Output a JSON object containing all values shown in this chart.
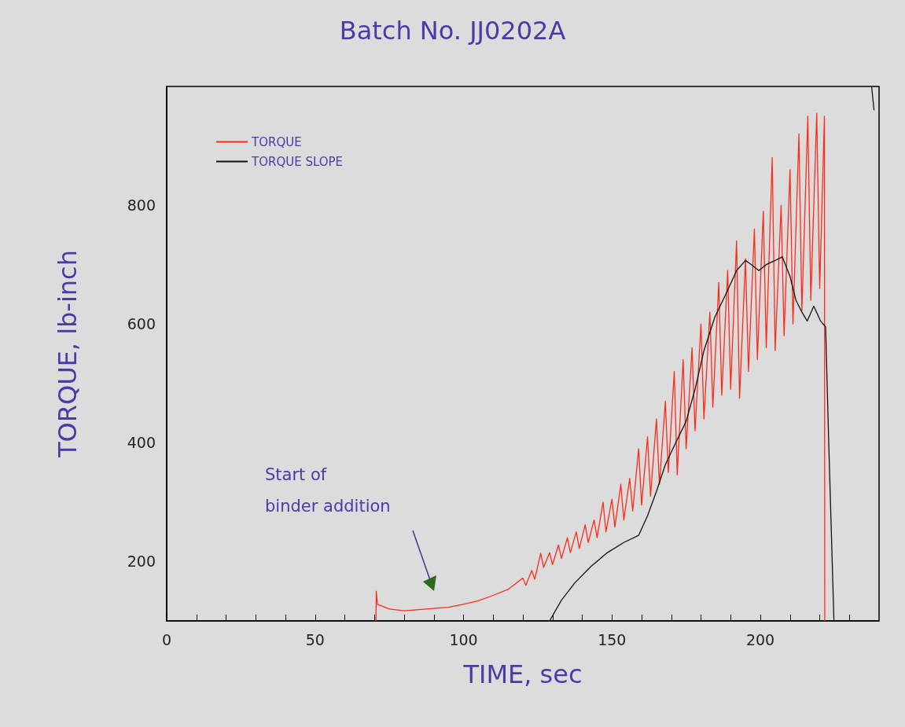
{
  "chart_data": {
    "type": "line",
    "title": "Batch No. JJ0202A",
    "xlabel": "TIME, sec",
    "ylabel": "TORQUE, lb-inch",
    "xlim": [
      0,
      240
    ],
    "ylim": [
      100,
      1000
    ],
    "xticks": [
      0,
      {
        "value": 10,
        "label": null
      },
      {
        "value": 20,
        "label": null
      },
      {
        "value": 30,
        "label": null
      },
      {
        "value": 40,
        "label": null
      },
      50,
      {
        "value": 60,
        "label": null
      },
      {
        "value": 70,
        "label": null
      },
      {
        "value": 80,
        "label": null
      },
      {
        "value": 90,
        "label": null
      },
      100,
      {
        "value": 110,
        "label": null
      },
      {
        "value": 120,
        "label": null
      },
      {
        "value": 130,
        "label": null
      },
      {
        "value": 140,
        "label": null
      },
      150,
      {
        "value": 160,
        "label": null
      },
      {
        "value": 170,
        "label": null
      },
      {
        "value": 180,
        "label": null
      },
      {
        "value": 190,
        "label": null
      },
      200,
      {
        "value": 210,
        "label": null
      },
      {
        "value": 220,
        "label": null
      },
      {
        "value": 230,
        "label": null
      }
    ],
    "yticks": [
      200,
      400,
      600,
      800
    ],
    "grid": false,
    "legend": "top left",
    "marker": "none",
    "line_style": "solid",
    "annotations": [
      "Start of\nbinder addition"
    ],
    "series": [
      {
        "name": "TORQUE",
        "color": "#ff2a1a",
        "x": [
          70.5,
          70.6,
          71,
          75,
          80,
          85,
          90,
          95,
          100,
          105,
          110,
          115,
          120,
          121,
          123,
          124,
          126,
          127,
          129,
          130,
          132,
          133,
          135,
          136,
          138,
          139,
          141,
          142,
          144,
          145,
          147,
          148,
          150,
          151,
          153,
          154,
          156,
          157,
          159,
          160,
          162,
          163,
          165,
          166,
          168,
          169,
          171,
          172,
          174,
          175,
          177,
          178,
          180,
          181,
          183,
          184,
          186,
          187,
          189,
          190,
          192,
          193,
          195,
          196,
          198,
          199,
          201,
          202,
          204,
          205,
          207,
          208,
          210,
          211,
          213,
          214,
          216,
          217,
          219,
          220,
          221.6,
          221.7
        ],
        "values": [
          100,
          150,
          128,
          120,
          117,
          119,
          121,
          123,
          128,
          134,
          143,
          153,
          172,
          160,
          185,
          170,
          214,
          190,
          215,
          195,
          228,
          205,
          240,
          215,
          250,
          222,
          262,
          232,
          270,
          240,
          300,
          250,
          305,
          258,
          330,
          270,
          340,
          285,
          390,
          295,
          410,
          310,
          440,
          330,
          470,
          350,
          520,
          346,
          540,
          390,
          560,
          420,
          600,
          440,
          620,
          460,
          670,
          480,
          690,
          490,
          740,
          475,
          710,
          520,
          760,
          540,
          790,
          560,
          880,
          555,
          800,
          580,
          860,
          600,
          920,
          622,
          950,
          640,
          955,
          660,
          950,
          100
        ]
      },
      {
        "name": "TORQUE SLOPE",
        "color": "#111111",
        "x": [
          129,
          133,
          137.5,
          143,
          148.5,
          154,
          159,
          162,
          165,
          168,
          171.5,
          175,
          178,
          181,
          184.7,
          189,
          192,
          195,
          197,
          199.5,
          202,
          205,
          207.4,
          210,
          212,
          214,
          215.8,
          218,
          220.3,
          222,
          223,
          224.8,
          230,
          237.5,
          238.3
        ],
        "values": [
          100,
          135,
          164,
          192,
          215,
          232,
          244,
          277,
          318,
          363,
          400,
          436,
          490,
          555,
          612,
          657,
          690,
          707,
          700,
          690,
          700,
          707,
          713,
          680,
          640,
          620,
          605,
          630,
          605,
          595,
          408,
          100,
          null,
          1000,
          960
        ]
      }
    ]
  }
}
